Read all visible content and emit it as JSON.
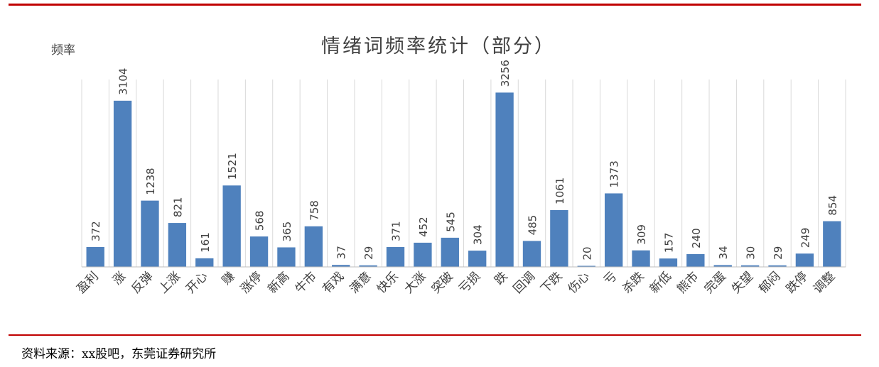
{
  "chart_data": {
    "type": "bar",
    "title": "情绪词频率统计（部分）",
    "ylabel": "频率",
    "categories": [
      "盈利",
      "涨",
      "反弹",
      "上涨",
      "开心",
      "赚",
      "涨停",
      "新高",
      "牛市",
      "有戏",
      "满意",
      "快乐",
      "大涨",
      "突破",
      "亏损",
      "跌",
      "回调",
      "下跌",
      "伤心",
      "亏",
      "杀跌",
      "新低",
      "熊市",
      "完蛋",
      "失望",
      "郁闷",
      "跌停",
      "调整"
    ],
    "values": [
      372,
      3104,
      1238,
      821,
      161,
      1521,
      568,
      365,
      758,
      37,
      29,
      371,
      452,
      545,
      304,
      3256,
      485,
      1061,
      20,
      1373,
      309,
      157,
      240,
      34,
      30,
      29,
      249,
      854
    ],
    "ylim": [
      0,
      3500
    ],
    "grid": "vertical",
    "bar_color": "#4f81bd"
  },
  "footer": {
    "source": "资料来源：xx股吧，东莞证券研究所"
  },
  "colors": {
    "rule": "#c00000"
  }
}
